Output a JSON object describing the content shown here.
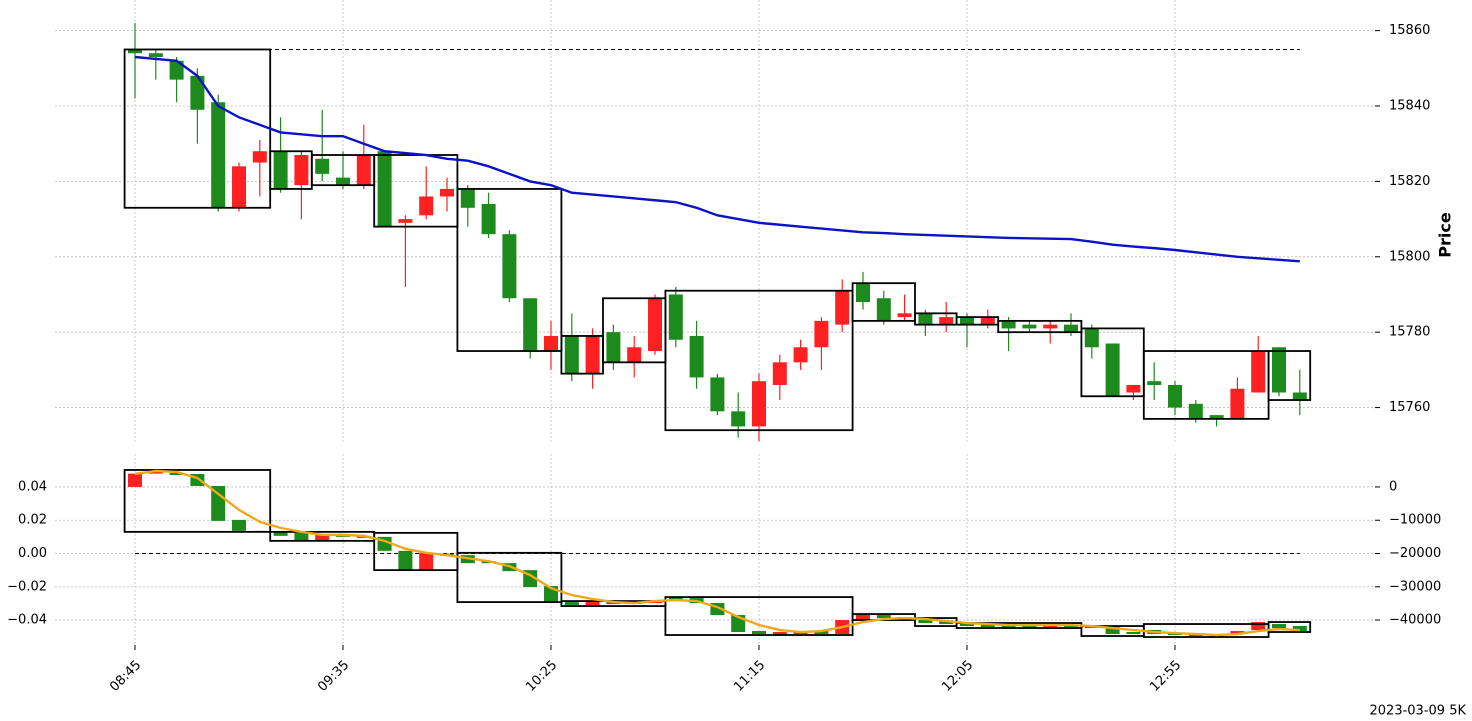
{
  "chart_data": [
    {
      "type": "candlestick",
      "ylabel": "Price",
      "ylim": [
        15751,
        15866
      ],
      "yticks": [
        15760,
        15780,
        15800,
        15820,
        15840,
        15860
      ],
      "grid": true,
      "up_color": "#ff2121",
      "down_color": "#1c8a1c",
      "open": [
        15855,
        15854,
        15852,
        15848,
        15841,
        15813,
        15825,
        15828,
        15819,
        15826,
        15821,
        15819,
        15828,
        15809,
        15811,
        15816,
        15818,
        15814,
        15806,
        15789,
        15775,
        15779,
        15769,
        15780,
        15772,
        15775,
        15790,
        15779,
        15768,
        15759,
        15755,
        15766,
        15772,
        15776,
        15782,
        15793,
        15789,
        15784,
        15785,
        15782,
        15784,
        15782,
        15783,
        15782,
        15781,
        15782,
        15781,
        15777,
        15764,
        15767,
        15766,
        15761,
        15758,
        15757,
        15764,
        15776,
        15764
      ],
      "high": [
        15862,
        15855,
        15853,
        15850,
        15843,
        15825,
        15831,
        15837,
        15828,
        15839,
        15828,
        15835,
        15828,
        15811,
        15824,
        15821,
        15819,
        15817,
        15807,
        15789,
        15783,
        15785,
        15781,
        15782,
        15779,
        15790,
        15792,
        15783,
        15769,
        15764,
        15769,
        15774,
        15778,
        15784,
        15794,
        15796,
        15791,
        15790,
        15786,
        15788,
        15785,
        15786,
        15784,
        15783,
        15783,
        15785,
        15782,
        15777,
        15766,
        15772,
        15767,
        15762,
        15758,
        15768,
        15779,
        15776,
        15770
      ],
      "low": [
        15842,
        15847,
        15841,
        15830,
        15812,
        15812,
        15816,
        15817,
        15810,
        15820,
        15818,
        15818,
        15808,
        15792,
        15810,
        15812,
        15808,
        15805,
        15788,
        15773,
        15770,
        15767,
        15765,
        15770,
        15768,
        15774,
        15776,
        15765,
        15758,
        15752,
        15751,
        15762,
        15770,
        15770,
        15780,
        15786,
        15782,
        15783,
        15779,
        15780,
        15776,
        15781,
        15775,
        15780,
        15777,
        15779,
        15773,
        15763,
        15762,
        15762,
        15758,
        15756,
        15755,
        15757,
        15764,
        15763,
        15758
      ],
      "close": [
        15854,
        15853,
        15847,
        15839,
        15813,
        15824,
        15828,
        15818,
        15827,
        15822,
        15819,
        15827,
        15808,
        15810,
        15816,
        15818,
        15813,
        15806,
        15789,
        15775,
        15779,
        15769,
        15779,
        15772,
        15776,
        15789,
        15778,
        15768,
        15759,
        15755,
        15767,
        15772,
        15776,
        15783,
        15791,
        15788,
        15783,
        15785,
        15782,
        15784,
        15782,
        15784,
        15781,
        15781,
        15782,
        15780,
        15776,
        15763,
        15766,
        15766,
        15760,
        15757,
        15757,
        15765,
        15775,
        15764,
        15762
      ],
      "line": {
        "color": "#0c12c8",
        "values": [
          15853,
          15852.5,
          15852,
          15848,
          15840,
          15837,
          15835,
          15833,
          15832.5,
          15832,
          15832,
          15830,
          15828,
          15827.5,
          15827,
          15826,
          15825.5,
          15824,
          15822,
          15820,
          15819,
          15817,
          15816.5,
          15816,
          15815.5,
          15815,
          15814.5,
          15813,
          15811,
          15810,
          15809,
          15808.5,
          15808,
          15807.5,
          15807,
          15806.5,
          15806.3,
          15806,
          15805.8,
          15805.6,
          15805.4,
          15805.2,
          15805,
          15804.9,
          15804.8,
          15804.7,
          15804,
          15803.2,
          15802.7,
          15802.3,
          15801.8,
          15801.2,
          15800.6,
          15800,
          15799.6,
          15799.2,
          15798.8
        ]
      },
      "hline": 15855,
      "boxes": [
        {
          "start": 0,
          "end": 6,
          "top": 15855,
          "bottom": 15813
        },
        {
          "start": 7,
          "end": 8,
          "top": 15828,
          "bottom": 15818
        },
        {
          "start": 9,
          "end": 11,
          "top": 15827,
          "bottom": 15819
        },
        {
          "start": 12,
          "end": 15,
          "top": 15827,
          "bottom": 15808
        },
        {
          "start": 16,
          "end": 20,
          "top": 15818,
          "bottom": 15775
        },
        {
          "start": 21,
          "end": 22,
          "top": 15779,
          "bottom": 15769
        },
        {
          "start": 23,
          "end": 25,
          "top": 15789,
          "bottom": 15772
        },
        {
          "start": 26,
          "end": 34,
          "top": 15791,
          "bottom": 15754
        },
        {
          "start": 35,
          "end": 37,
          "top": 15793,
          "bottom": 15783
        },
        {
          "start": 38,
          "end": 39,
          "top": 15785,
          "bottom": 15782
        },
        {
          "start": 40,
          "end": 41,
          "top": 15784,
          "bottom": 15782
        },
        {
          "start": 42,
          "end": 45,
          "top": 15783,
          "bottom": 15780
        },
        {
          "start": 46,
          "end": 48,
          "top": 15781,
          "bottom": 15763
        },
        {
          "start": 49,
          "end": 54,
          "top": 15775,
          "bottom": 15757
        },
        {
          "start": 55,
          "end": 56,
          "top": 15775,
          "bottom": 15762
        }
      ]
    },
    {
      "type": "candlestick",
      "axis": "y2",
      "categories": [
        "08:45",
        null,
        null,
        null,
        null,
        null,
        null,
        null,
        null,
        null,
        "09:35",
        null,
        null,
        null,
        null,
        null,
        null,
        null,
        null,
        null,
        "10:25",
        null,
        null,
        null,
        null,
        null,
        null,
        null,
        null,
        null,
        "11:15",
        null,
        null,
        null,
        null,
        null,
        null,
        null,
        null,
        null,
        "12:05",
        null,
        null,
        null,
        null,
        null,
        null,
        null,
        null,
        null,
        "12:55",
        null,
        null,
        null,
        null,
        null,
        null
      ],
      "ylim": [
        -0.055,
        0.055
      ],
      "yticks": [
        0.04,
        0.02,
        {
          "value": 0,
          "label": "0.00"
        },
        {
          "value": -0.02,
          "label": "−0.02"
        },
        {
          "value": -0.04,
          "label": "−0.04"
        }
      ],
      "y2lim": [
        -47500,
        7500
      ],
      "y2ticks": [
        0,
        {
          "value": -10000,
          "label": "−10000"
        },
        {
          "value": -20000,
          "label": "−20000"
        },
        {
          "value": -30000,
          "label": "−30000"
        },
        {
          "value": -40000,
          "label": "−40000"
        }
      ],
      "grid": true,
      "up_color": "#ff2121",
      "down_color": "#1c8a1c",
      "open": [
        0,
        4000,
        4200,
        3900,
        300,
        -9900,
        -13200,
        -13500,
        -13800,
        -16200,
        -14400,
        -14700,
        -15000,
        -19200,
        -25000,
        -20100,
        -20500,
        -22300,
        -22900,
        -25000,
        -29800,
        -34600,
        -35500,
        -34300,
        -34600,
        -34900,
        -33100,
        -33400,
        -34900,
        -38500,
        -43300,
        -44500,
        -43600,
        -43300,
        -44200,
        -40000,
        -38500,
        -39100,
        -39400,
        -40300,
        -40900,
        -41500,
        -41800,
        -41800,
        -42100,
        -41500,
        -41800,
        -41700,
        -43600,
        -43000,
        -43900,
        -44200,
        -44500,
        -44200,
        -43000,
        -41200,
        -41800
      ],
      "close": [
        4000,
        4500,
        3600,
        300,
        -10200,
        -13200,
        -13500,
        -14700,
        -16200,
        -14400,
        -15000,
        -15300,
        -19200,
        -25000,
        -19800,
        -20700,
        -22900,
        -22900,
        -25300,
        -30100,
        -34600,
        -35500,
        -34300,
        -35200,
        -35200,
        -34000,
        -34300,
        -34900,
        -38500,
        -43600,
        -44200,
        -43600,
        -44200,
        -44200,
        -40000,
        -38200,
        -39400,
        -39700,
        -40900,
        -41200,
        -41800,
        -42100,
        -42100,
        -42400,
        -41500,
        -42100,
        -42400,
        -44200,
        -44200,
        -44200,
        -44500,
        -44800,
        -44800,
        -43300,
        -40600,
        -42400,
        -43300
      ],
      "line": {
        "color": "#f0a818",
        "values": [
          3900,
          4800,
          4500,
          2700,
          -2100,
          -6900,
          -10500,
          -12300,
          -13500,
          -14400,
          -14400,
          -14700,
          -16200,
          -18600,
          -19800,
          -20500,
          -21400,
          -22300,
          -23800,
          -26500,
          -30400,
          -32500,
          -33700,
          -34600,
          -34900,
          -34300,
          -34000,
          -34300,
          -36100,
          -39100,
          -41500,
          -43000,
          -43600,
          -43300,
          -42100,
          -40600,
          -39700,
          -39400,
          -39700,
          -40300,
          -40900,
          -41200,
          -41500,
          -41500,
          -41500,
          -41500,
          -41800,
          -42400,
          -43000,
          -43600,
          -43900,
          -44200,
          -44500,
          -44200,
          -43300,
          -42700,
          -43000
        ]
      },
      "hline": -20000,
      "boxes": [
        {
          "start": 0,
          "end": 6,
          "top": 5100,
          "bottom": -13500
        },
        {
          "start": 7,
          "end": 11,
          "top": -13500,
          "bottom": -16200
        },
        {
          "start": 12,
          "end": 15,
          "top": -13800,
          "bottom": -25000
        },
        {
          "start": 16,
          "end": 20,
          "top": -19800,
          "bottom": -34600
        },
        {
          "start": 21,
          "end": 25,
          "top": -34300,
          "bottom": -35800
        },
        {
          "start": 26,
          "end": 34,
          "top": -33100,
          "bottom": -44500
        },
        {
          "start": 35,
          "end": 37,
          "top": -38200,
          "bottom": -40000
        },
        {
          "start": 38,
          "end": 39,
          "top": -39400,
          "bottom": -41800
        },
        {
          "start": 40,
          "end": 45,
          "top": -40900,
          "bottom": -42400
        },
        {
          "start": 46,
          "end": 48,
          "top": -41800,
          "bottom": -44800
        },
        {
          "start": 49,
          "end": 54,
          "top": -41200,
          "bottom": -45100
        },
        {
          "start": 55,
          "end": 56,
          "top": -40600,
          "bottom": -43600
        }
      ],
      "footnote": "2023-03-09 5K"
    }
  ]
}
